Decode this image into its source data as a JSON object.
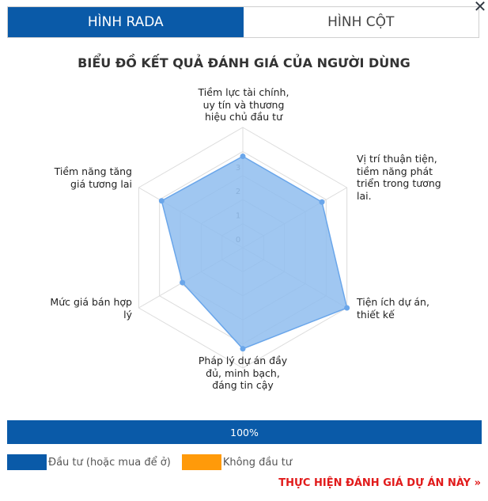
{
  "tabs": [
    {
      "label": "HÌNH RADA",
      "active": true
    },
    {
      "label": "HÌNH CỘT",
      "active": false
    }
  ],
  "close_icon": "close-icon",
  "chart_data": {
    "type": "radar",
    "title": "BIỂU ĐỒ KẾT QUẢ ĐÁNH GIÁ CỦA NGƯỜI DÙNG",
    "axes": [
      "Tiềm lực tài chính, uy tín và thương hiệu chủ đầu tư",
      "Vị trí thuận tiện, tiềm năng phát triển trong tương lai.",
      "Tiện ích dự án, thiết kế",
      "Pháp lý dự án đầy đủ, minh bạch, đáng tin cậy",
      "Mức giá bán hợp lý",
      "Tiềm năng tăng giá tương lai"
    ],
    "values": [
      3.8,
      3.8,
      5.0,
      4.2,
      2.9,
      3.9
    ],
    "ticks": [
      "0",
      "1",
      "2",
      "3"
    ],
    "range": [
      0,
      5
    ],
    "colors": {
      "fill": "#8fbdee",
      "stroke": "#6aa6ea",
      "point": "#6aa6ea",
      "grid": "#dcdcdc"
    }
  },
  "progress": {
    "label": "100%",
    "value": 1.0,
    "color": "#0a5aa8"
  },
  "legend": [
    {
      "label": "Đầu tư (hoặc mua để ở)",
      "color": "#0a5aa8"
    },
    {
      "label": "Không đầu tư",
      "color": "#ff9a0a"
    }
  ],
  "cta": {
    "label": "THỰC HIỆN ĐÁNH GIÁ DỰ ÁN NÀY »"
  }
}
